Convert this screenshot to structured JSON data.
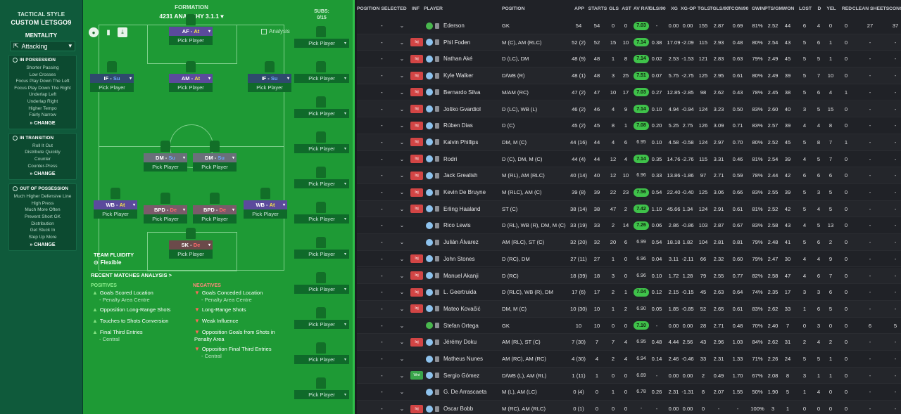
{
  "tactics": {
    "style_label": "TACTICAL STYLE",
    "style_name": "CUSTOM LETSGO9",
    "mentality_label": "MENTALITY",
    "mentality_value": "Attacking",
    "cards": [
      {
        "title": "IN POSSESSION",
        "items": [
          "Shorter Passing",
          "Low Crosses",
          "Focus Play Down The Left",
          "Focus Play Down The Right",
          "Underlap Left",
          "Underlap Right",
          "Higher Tempo",
          "Fairly Narrow"
        ],
        "change": "CHANGE"
      },
      {
        "title": "IN TRANSITION",
        "items": [
          "Roll It Out",
          "Distribute Quickly",
          "Counter",
          "Counter-Press"
        ],
        "change": "CHANGE"
      },
      {
        "title": "OUT OF POSSESSION",
        "items": [
          "Much Higher Defensive Line",
          "High Press",
          "Much More Often",
          "Prevent Short GK",
          "Distribution",
          "Get Stuck In",
          "Step Up More"
        ],
        "change": "CHANGE"
      }
    ]
  },
  "formation": {
    "label": "FORMATION",
    "name": "4231 ANARCHY 3.1.1",
    "analysis": "Analysis",
    "pick_player": "Pick Player",
    "players": [
      {
        "role": "AF",
        "duty": "At",
        "duty_class": "at"
      },
      {
        "role": "IF",
        "duty": "Su",
        "duty_class": "su"
      },
      {
        "role": "AM",
        "duty": "At",
        "duty_class": "at"
      },
      {
        "role": "IF",
        "duty": "Su",
        "duty_class": "su"
      },
      {
        "role": "DM",
        "duty": "Su",
        "duty_class": "su"
      },
      {
        "role": "DM",
        "duty": "Su",
        "duty_class": "su"
      },
      {
        "role": "WB",
        "duty": "At",
        "duty_class": "at"
      },
      {
        "role": "BPD",
        "duty": "De",
        "duty_class": "de"
      },
      {
        "role": "BPD",
        "duty": "De",
        "duty_class": "de"
      },
      {
        "role": "WB",
        "duty": "At",
        "duty_class": "at"
      },
      {
        "role": "SK",
        "duty": "De",
        "duty_class": "de"
      }
    ],
    "team_fluidity_label": "TEAM FLUIDITY",
    "team_fluidity_value": "Flexible",
    "recent_label": "RECENT MATCHES ANALYSIS >",
    "positives_label": "POSITIVES",
    "negatives_label": "NEGATIVES",
    "positives": [
      {
        "text": "Goals Scored Location",
        "sub": "- Penalty Area Centre"
      },
      {
        "text": "Opposition Long-Range Shots",
        "sub": ""
      },
      {
        "text": "Touches to Shots Conversion",
        "sub": ""
      },
      {
        "text": "Final Third Entries",
        "sub": "- Central"
      }
    ],
    "negatives": [
      {
        "text": "Goals Conceded Location",
        "sub": "- Penalty Area Centre"
      },
      {
        "text": "Long-Range Shots",
        "sub": ""
      },
      {
        "text": "Weak Influence",
        "sub": ""
      },
      {
        "text": "Opposition Goals from Shots in Penalty Area",
        "sub": ""
      },
      {
        "text": "Opposition Final Third Entries",
        "sub": "- Central"
      }
    ]
  },
  "subs": {
    "label": "SUBS:",
    "count": "0/15"
  },
  "table": {
    "headers": [
      "POSITION SELECTED",
      "INF",
      "PLAYER",
      "POSITION",
      "APP",
      "STARTS",
      "GLS",
      "AST",
      "AV RAT",
      "GLS/90",
      "XG",
      "XG-OP",
      "TGLS",
      "TGLS/90",
      "TCON/90",
      "GWIN",
      "PTS/GM",
      "WON",
      "LOST",
      "D",
      "YEL",
      "RED",
      "CLEAN SHEETS",
      "CONC"
    ],
    "rows": [
      {
        "sel": "-",
        "inf": "",
        "gk": true,
        "name": "Ederson",
        "pos": "GK",
        "app": "54",
        "starts": "54",
        "gls": "0",
        "ast": "0",
        "rat": "7.03",
        "gls90": "-",
        "xg": "0.00",
        "xgop": "0.00",
        "tgls": "155",
        "tgls90": "2.87",
        "tcon90": "0.69",
        "gwin": "81%",
        "pts": "2.52",
        "won": "44",
        "lost": "6",
        "d": "4",
        "yel": "0",
        "red": "0",
        "cs": "27",
        "conc": "37"
      },
      {
        "sel": "-",
        "inf": "Inj",
        "gk": false,
        "name": "Phil Foden",
        "pos": "M (C), AM (RLC)",
        "app": "52 (2)",
        "starts": "52",
        "gls": "15",
        "ast": "10",
        "rat": "7.14",
        "gls90": "0.38",
        "xg": "17.09",
        "xgop": "-2.09",
        "tgls": "115",
        "tgls90": "2.93",
        "tcon90": "0.48",
        "gwin": "80%",
        "pts": "2.54",
        "won": "43",
        "lost": "5",
        "d": "6",
        "yel": "1",
        "red": "0",
        "cs": "-",
        "conc": "-"
      },
      {
        "sel": "-",
        "inf": "Inj",
        "gk": false,
        "name": "Nathan Aké",
        "pos": "D (LC), DM",
        "app": "48 (9)",
        "starts": "48",
        "gls": "1",
        "ast": "8",
        "rat": "7.14",
        "gls90": "0.02",
        "xg": "2.53",
        "xgop": "-1.53",
        "tgls": "121",
        "tgls90": "2.83",
        "tcon90": "0.63",
        "gwin": "79%",
        "pts": "2.49",
        "won": "45",
        "lost": "5",
        "d": "5",
        "yel": "1",
        "red": "0",
        "cs": "-",
        "conc": "-"
      },
      {
        "sel": "-",
        "inf": "Inj",
        "gk": false,
        "name": "Kyle Walker",
        "pos": "D/WB (R)",
        "app": "48 (1)",
        "starts": "48",
        "gls": "3",
        "ast": "25",
        "rat": "7.51",
        "gls90": "0.07",
        "xg": "5.75",
        "xgop": "-2.75",
        "tgls": "125",
        "tgls90": "2.95",
        "tcon90": "0.61",
        "gwin": "80%",
        "pts": "2.49",
        "won": "39",
        "lost": "5",
        "d": "7",
        "yel": "10",
        "red": "0",
        "cs": "-",
        "conc": "-"
      },
      {
        "sel": "-",
        "inf": "Inj",
        "gk": false,
        "name": "Bernardo Silva",
        "pos": "M/AM (RC)",
        "app": "47 (2)",
        "starts": "47",
        "gls": "10",
        "ast": "17",
        "rat": "7.03",
        "gls90": "0.27",
        "xg": "12.85",
        "xgop": "-2.85",
        "tgls": "98",
        "tgls90": "2.62",
        "tcon90": "0.43",
        "gwin": "78%",
        "pts": "2.45",
        "won": "38",
        "lost": "5",
        "d": "6",
        "yel": "4",
        "red": "1",
        "cs": "-",
        "conc": "-"
      },
      {
        "sel": "-",
        "inf": "Inj",
        "gk": false,
        "name": "Joško Gvardiol",
        "pos": "D (LC), WB (L)",
        "app": "46 (2)",
        "starts": "46",
        "gls": "4",
        "ast": "9",
        "rat": "7.14",
        "gls90": "0.10",
        "xg": "4.94",
        "xgop": "-0.94",
        "tgls": "124",
        "tgls90": "3.23",
        "tcon90": "0.50",
        "gwin": "83%",
        "pts": "2.60",
        "won": "40",
        "lost": "3",
        "d": "5",
        "yel": "15",
        "red": "0",
        "cs": "-",
        "conc": "-"
      },
      {
        "sel": "-",
        "inf": "Inj",
        "gk": false,
        "name": "Rúben Dias",
        "pos": "D (C)",
        "app": "45 (2)",
        "starts": "45",
        "gls": "8",
        "ast": "1",
        "rat": "7.08",
        "gls90": "0.20",
        "xg": "5.25",
        "xgop": "2.75",
        "tgls": "126",
        "tgls90": "3.09",
        "tcon90": "0.71",
        "gwin": "83%",
        "pts": "2.57",
        "won": "39",
        "lost": "4",
        "d": "4",
        "yel": "8",
        "red": "0",
        "cs": "-",
        "conc": "-"
      },
      {
        "sel": "-",
        "inf": "Inj",
        "gk": false,
        "name": "Kalvin Phillips",
        "pos": "DM, M (C)",
        "app": "44 (16)",
        "starts": "44",
        "gls": "4",
        "ast": "6",
        "rat": "6.95",
        "gls90": "0.10",
        "xg": "4.58",
        "xgop": "-0.58",
        "tgls": "124",
        "tgls90": "2.97",
        "tcon90": "0.70",
        "gwin": "80%",
        "pts": "2.52",
        "won": "45",
        "lost": "5",
        "d": "8",
        "yel": "7",
        "red": "1",
        "cs": "-",
        "conc": "-"
      },
      {
        "sel": "-",
        "inf": "Inj",
        "gk": false,
        "name": "Rodri",
        "pos": "D (C), DM, M (C)",
        "app": "44 (4)",
        "starts": "44",
        "gls": "12",
        "ast": "4",
        "rat": "7.14",
        "gls90": "0.35",
        "xg": "14.76",
        "xgop": "-2.76",
        "tgls": "115",
        "tgls90": "3.31",
        "tcon90": "0.46",
        "gwin": "81%",
        "pts": "2.54",
        "won": "39",
        "lost": "4",
        "d": "5",
        "yel": "7",
        "red": "0",
        "cs": "-",
        "conc": "-"
      },
      {
        "sel": "-",
        "inf": "Inj",
        "gk": false,
        "name": "Jack Grealish",
        "pos": "M (RL), AM (RLC)",
        "app": "40 (14)",
        "starts": "40",
        "gls": "12",
        "ast": "10",
        "rat": "6.96",
        "gls90": "0.33",
        "xg": "13.86",
        "xgop": "-1.86",
        "tgls": "97",
        "tgls90": "2.71",
        "tcon90": "0.59",
        "gwin": "78%",
        "pts": "2.44",
        "won": "42",
        "lost": "6",
        "d": "6",
        "yel": "6",
        "red": "0",
        "cs": "-",
        "conc": "-"
      },
      {
        "sel": "-",
        "inf": "Inj",
        "gk": false,
        "name": "Kevin De Bruyne",
        "pos": "M (RLC), AM (C)",
        "app": "39 (8)",
        "starts": "39",
        "gls": "22",
        "ast": "23",
        "rat": "7.56",
        "gls90": "0.54",
        "xg": "22.40",
        "xgop": "-0.40",
        "tgls": "125",
        "tgls90": "3.06",
        "tcon90": "0.66",
        "gwin": "83%",
        "pts": "2.55",
        "won": "39",
        "lost": "5",
        "d": "3",
        "yel": "5",
        "red": "0",
        "cs": "-",
        "conc": "-"
      },
      {
        "sel": "-",
        "inf": "Inj",
        "gk": false,
        "name": "Erling Haaland",
        "pos": "ST (C)",
        "app": "38 (14)",
        "starts": "38",
        "gls": "47",
        "ast": "2",
        "rat": "7.42",
        "gls90": "1.10",
        "xg": "45.66",
        "xgop": "1.34",
        "tgls": "124",
        "tgls90": "2.91",
        "tcon90": "0.61",
        "gwin": "81%",
        "pts": "2.52",
        "won": "42",
        "lost": "5",
        "d": "4",
        "yel": "5",
        "red": "0",
        "cs": "-",
        "conc": "-"
      },
      {
        "sel": "-",
        "inf": "",
        "gk": false,
        "name": "Rico Lewis",
        "pos": "D (RL), WB (R), DM, M (C)",
        "app": "33 (19)",
        "starts": "33",
        "gls": "2",
        "ast": "14",
        "rat": "7.26",
        "gls90": "0.06",
        "xg": "2.86",
        "xgop": "-0.86",
        "tgls": "103",
        "tgls90": "2.87",
        "tcon90": "0.67",
        "gwin": "83%",
        "pts": "2.58",
        "won": "43",
        "lost": "4",
        "d": "5",
        "yel": "13",
        "red": "0",
        "cs": "-",
        "conc": "-"
      },
      {
        "sel": "-",
        "inf": "",
        "gk": false,
        "name": "Julián Álvarez",
        "pos": "AM (RLC), ST (C)",
        "app": "32 (20)",
        "starts": "32",
        "gls": "20",
        "ast": "6",
        "rat": "6.99",
        "gls90": "0.54",
        "xg": "18.18",
        "xgop": "1.82",
        "tgls": "104",
        "tgls90": "2.81",
        "tcon90": "0.81",
        "gwin": "79%",
        "pts": "2.48",
        "won": "41",
        "lost": "5",
        "d": "6",
        "yel": "2",
        "red": "0",
        "cs": "-",
        "conc": "-"
      },
      {
        "sel": "-",
        "inf": "Inj",
        "gk": false,
        "name": "John Stones",
        "pos": "D (RC), DM",
        "app": "27 (11)",
        "starts": "27",
        "gls": "1",
        "ast": "0",
        "rat": "6.96",
        "gls90": "0.04",
        "xg": "3.11",
        "xgop": "-2.11",
        "tgls": "66",
        "tgls90": "2.32",
        "tcon90": "0.60",
        "gwin": "79%",
        "pts": "2.47",
        "won": "30",
        "lost": "4",
        "d": "4",
        "yel": "9",
        "red": "0",
        "cs": "-",
        "conc": "-"
      },
      {
        "sel": "-",
        "inf": "Inj",
        "gk": false,
        "name": "Manuel Akanji",
        "pos": "D (RC)",
        "app": "18 (39)",
        "starts": "18",
        "gls": "3",
        "ast": "0",
        "rat": "6.96",
        "gls90": "0.10",
        "xg": "1.72",
        "xgop": "1.28",
        "tgls": "79",
        "tgls90": "2.55",
        "tcon90": "0.77",
        "gwin": "82%",
        "pts": "2.58",
        "won": "47",
        "lost": "4",
        "d": "6",
        "yel": "7",
        "red": "0",
        "cs": "-",
        "conc": "-"
      },
      {
        "sel": "-",
        "inf": "Inj",
        "gk": false,
        "name": "L. Geertruida",
        "pos": "D (RLC), WB (R), DM",
        "app": "17 (6)",
        "starts": "17",
        "gls": "2",
        "ast": "1",
        "rat": "7.04",
        "gls90": "0.12",
        "xg": "2.15",
        "xgop": "-0.15",
        "tgls": "45",
        "tgls90": "2.63",
        "tcon90": "0.64",
        "gwin": "74%",
        "pts": "2.35",
        "won": "17",
        "lost": "3",
        "d": "3",
        "yel": "6",
        "red": "0",
        "cs": "-",
        "conc": "-"
      },
      {
        "sel": "-",
        "inf": "Inj",
        "gk": false,
        "name": "Mateo Kovačić",
        "pos": "DM, M (C)",
        "app": "10 (30)",
        "starts": "10",
        "gls": "1",
        "ast": "2",
        "rat": "6.90",
        "gls90": "0.05",
        "xg": "1.85",
        "xgop": "-0.85",
        "tgls": "52",
        "tgls90": "2.65",
        "tcon90": "0.61",
        "gwin": "83%",
        "pts": "2.62",
        "won": "33",
        "lost": "1",
        "d": "6",
        "yel": "5",
        "red": "0",
        "cs": "-",
        "conc": "-"
      },
      {
        "sel": "-",
        "inf": "",
        "gk": true,
        "name": "Stefan Ortega",
        "pos": "GK",
        "app": "10",
        "starts": "10",
        "gls": "0",
        "ast": "0",
        "rat": "7.10",
        "gls90": "-",
        "xg": "0.00",
        "xgop": "0.00",
        "tgls": "28",
        "tgls90": "2.71",
        "tcon90": "0.48",
        "gwin": "70%",
        "pts": "2.40",
        "won": "7",
        "lost": "0",
        "d": "3",
        "yel": "0",
        "red": "0",
        "cs": "6",
        "conc": "5"
      },
      {
        "sel": "-",
        "inf": "Inj",
        "gk": false,
        "name": "Jérémy Doku",
        "pos": "AM (RL), ST (C)",
        "app": "7 (30)",
        "starts": "7",
        "gls": "7",
        "ast": "4",
        "rat": "6.95",
        "gls90": "0.48",
        "xg": "4.44",
        "xgop": "2.56",
        "tgls": "43",
        "tgls90": "2.96",
        "tcon90": "1.03",
        "gwin": "84%",
        "pts": "2.62",
        "won": "31",
        "lost": "2",
        "d": "4",
        "yel": "2",
        "red": "0",
        "cs": "-",
        "conc": "-"
      },
      {
        "sel": "-",
        "inf": "",
        "gk": false,
        "name": "Matheus Nunes",
        "pos": "AM (RC), AM (RC)",
        "app": "4 (30)",
        "starts": "4",
        "gls": "2",
        "ast": "4",
        "rat": "6.94",
        "gls90": "0.14",
        "xg": "2.46",
        "xgop": "-0.46",
        "tgls": "33",
        "tgls90": "2.31",
        "tcon90": "1.33",
        "gwin": "71%",
        "pts": "2.26",
        "won": "24",
        "lost": "5",
        "d": "5",
        "yel": "1",
        "red": "0",
        "cs": "-",
        "conc": "-"
      },
      {
        "sel": "-",
        "inf": "Wnt",
        "gk": false,
        "name": "Sergio Gómez",
        "pos": "D/WB (L), AM (RL)",
        "app": "1 (11)",
        "starts": "1",
        "gls": "0",
        "ast": "0",
        "rat": "6.69",
        "gls90": "-",
        "xg": "0.00",
        "xgop": "0.00",
        "tgls": "2",
        "tgls90": "0.49",
        "tcon90": "1.70",
        "gwin": "67%",
        "pts": "2.08",
        "won": "8",
        "lost": "3",
        "d": "1",
        "yel": "1",
        "red": "0",
        "cs": "-",
        "conc": "-"
      },
      {
        "sel": "-",
        "inf": "",
        "gk": false,
        "name": "G. De Arrascaeta",
        "pos": "M (L), AM (LC)",
        "app": "0 (4)",
        "starts": "0",
        "gls": "1",
        "ast": "0",
        "rat": "6.78",
        "gls90": "0.26",
        "xg": "2.31",
        "xgop": "-1.31",
        "tgls": "8",
        "tgls90": "2.07",
        "tcon90": "1.55",
        "gwin": "50%",
        "pts": "1.90",
        "won": "5",
        "lost": "1",
        "d": "4",
        "yel": "0",
        "red": "0",
        "cs": "-",
        "conc": "-"
      },
      {
        "sel": "-",
        "inf": "Inj",
        "gk": false,
        "name": "Oscar Bobb",
        "pos": "M (RC), AM (RLC)",
        "app": "0 (1)",
        "starts": "0",
        "gls": "0",
        "ast": "0",
        "rat": "-",
        "gls90": "-",
        "xg": "0.00",
        "xgop": "0.00",
        "tgls": "0",
        "tgls90": "-",
        "tcon90": "-",
        "gwin": "100%",
        "pts": "3",
        "won": "1",
        "lost": "0",
        "d": "0",
        "yel": "0",
        "red": "0",
        "cs": "-",
        "conc": "-"
      }
    ]
  }
}
